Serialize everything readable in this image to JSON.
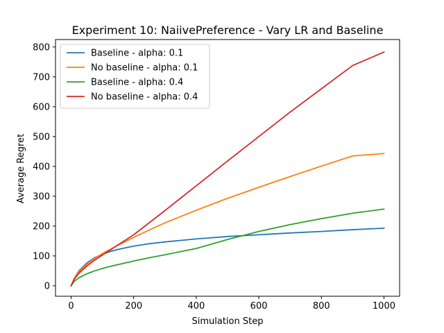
{
  "chart_data": {
    "type": "line",
    "title": "Experiment 10: NaiivePreference - Vary LR and Baseline",
    "xlabel": "Simulation Step",
    "ylabel": "Average Regret",
    "xlim": [
      -50,
      1050
    ],
    "ylim": [
      -35,
      825
    ],
    "xticks": [
      0,
      200,
      400,
      600,
      800,
      1000
    ],
    "yticks": [
      0,
      100,
      200,
      300,
      400,
      500,
      600,
      700,
      800
    ],
    "grid": false,
    "legend_position": "upper-left",
    "series": [
      {
        "name": "Baseline - alpha: 0.1",
        "color": "#1f77b4",
        "x": [
          0,
          10,
          25,
          50,
          75,
          100,
          125,
          150,
          200,
          250,
          300,
          400,
          500,
          600,
          700,
          800,
          900,
          1000
        ],
        "y": [
          0,
          25,
          50,
          76,
          94,
          106,
          115,
          122,
          133,
          141,
          147,
          157,
          165,
          171,
          177,
          182,
          188,
          193
        ]
      },
      {
        "name": "No baseline - alpha: 0.1",
        "color": "#ff7f0e",
        "x": [
          0,
          10,
          25,
          50,
          75,
          100,
          125,
          150,
          200,
          250,
          300,
          400,
          500,
          600,
          700,
          800,
          900,
          1000
        ],
        "y": [
          0,
          25,
          47,
          72,
          92,
          108,
          122,
          136,
          162,
          187,
          211,
          253,
          293,
          330,
          366,
          401,
          435,
          443
        ]
      },
      {
        "name": "Baseline - alpha: 0.4",
        "color": "#2ca02c",
        "x": [
          0,
          10,
          25,
          50,
          75,
          100,
          125,
          150,
          200,
          250,
          300,
          400,
          500,
          600,
          700,
          800,
          900,
          1000
        ],
        "y": [
          0,
          15,
          27,
          40,
          50,
          58,
          65,
          71,
          83,
          94,
          104,
          125,
          155,
          182,
          205,
          225,
          243,
          257
        ]
      },
      {
        "name": "No baseline - alpha: 0.4",
        "color": "#d62728",
        "x": [
          0,
          10,
          25,
          50,
          75,
          100,
          150,
          200,
          300,
          400,
          500,
          600,
          700,
          800,
          900,
          1000
        ],
        "y": [
          0,
          22,
          42,
          66,
          86,
          103,
          137,
          171,
          252,
          335,
          418,
          500,
          582,
          660,
          738,
          783
        ]
      }
    ]
  }
}
